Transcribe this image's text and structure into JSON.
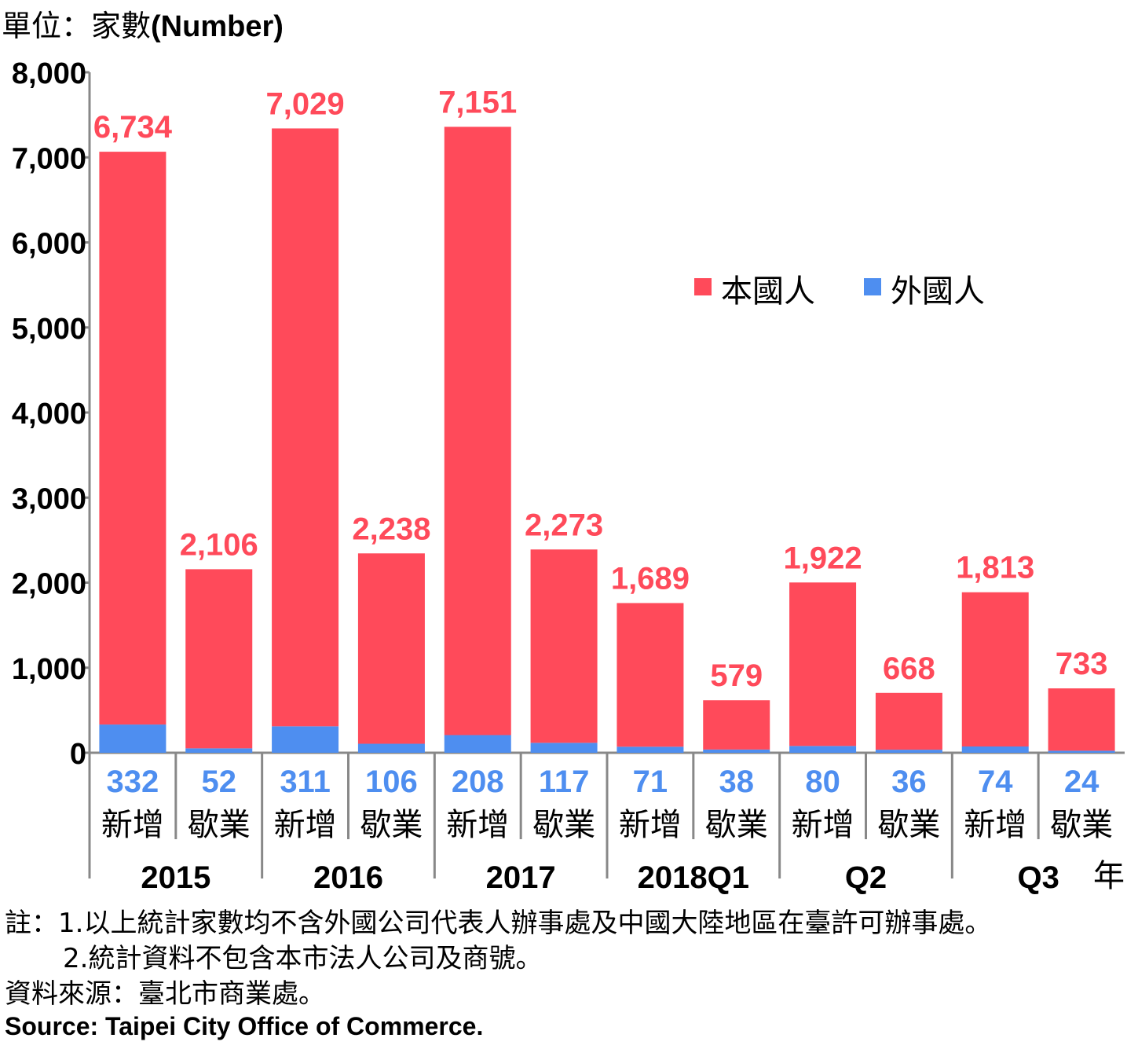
{
  "unit_label_zh": "單位：家數",
  "unit_label_en": "(Number)",
  "chart_data": {
    "type": "bar",
    "stacked": true,
    "ylim": [
      0,
      8000
    ],
    "yticks": [
      "0",
      "1,000",
      "2,000",
      "3,000",
      "4,000",
      "5,000",
      "6,000",
      "7,000",
      "8,000"
    ],
    "grid": false,
    "legend_position": "center-right",
    "groups": [
      "2015",
      "2016",
      "2017",
      "2018Q1",
      "Q2",
      "Q3"
    ],
    "x_axis_unit": "年",
    "categories": [
      "新增",
      "歇業",
      "新增",
      "歇業",
      "新增",
      "歇業",
      "新增",
      "歇業",
      "新增",
      "歇業",
      "新增",
      "歇業"
    ],
    "series": [
      {
        "name": "本國人",
        "color": "#ff4a5a",
        "values": [
          6734,
          2106,
          7029,
          2238,
          7151,
          2273,
          1689,
          579,
          1922,
          668,
          1813,
          733
        ],
        "labels": [
          "6,734",
          "2,106",
          "7,029",
          "2,238",
          "7,151",
          "2,273",
          "1,689",
          "579",
          "1,922",
          "668",
          "1,813",
          "733"
        ]
      },
      {
        "name": "外國人",
        "color": "#4e8ef0",
        "values": [
          332,
          52,
          311,
          106,
          208,
          117,
          71,
          38,
          80,
          36,
          74,
          24
        ],
        "labels": [
          "332",
          "52",
          "311",
          "106",
          "208",
          "117",
          "71",
          "38",
          "80",
          "36",
          "74",
          "24"
        ]
      }
    ]
  },
  "notes": {
    "line1": "註：1.以上統計家數均不含外國公司代表人辦事處及中國大陸地區在臺許可辦事處。",
    "line2": "2.統計資料不包含本市法人公司及商號。",
    "source_zh": "資料來源：臺北市商業處。",
    "source_en": "Source: Taipei City Office of Commerce."
  }
}
